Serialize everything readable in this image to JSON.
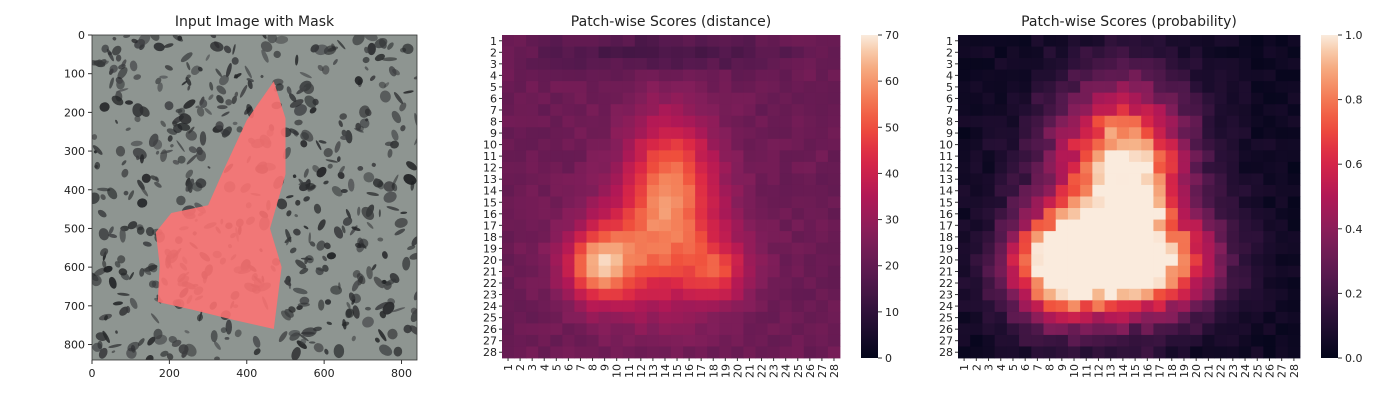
{
  "chart_data": [
    {
      "type": "heatmap",
      "title": "Input Image with Mask",
      "xticks": [
        0,
        200,
        400,
        600,
        800
      ],
      "yticks": [
        0,
        100,
        200,
        300,
        400,
        500,
        600,
        700,
        800
      ],
      "xlim": [
        0,
        840
      ],
      "ylim": [
        0,
        840
      ],
      "mask_color": "#ff5a5a",
      "mask_polygon": [
        [
          470,
          120
        ],
        [
          500,
          215
        ],
        [
          500,
          360
        ],
        [
          460,
          500
        ],
        [
          490,
          600
        ],
        [
          470,
          760
        ],
        [
          360,
          735
        ],
        [
          260,
          710
        ],
        [
          170,
          690
        ],
        [
          175,
          595
        ],
        [
          165,
          510
        ],
        [
          205,
          460
        ],
        [
          300,
          440
        ],
        [
          340,
          350
        ],
        [
          400,
          220
        ]
      ]
    },
    {
      "type": "heatmap",
      "title": "Patch-wise Scores (distance)",
      "labels": [
        "1",
        "2",
        "3",
        "4",
        "5",
        "6",
        "7",
        "8",
        "9",
        "10",
        "11",
        "12",
        "13",
        "14",
        "15",
        "16",
        "17",
        "18",
        "19",
        "20",
        "21",
        "22",
        "23",
        "24",
        "25",
        "26",
        "27",
        "28"
      ],
      "colorbar_ticks": [
        0,
        10,
        20,
        30,
        40,
        50,
        60,
        70
      ],
      "vmin": 0,
      "vmax": 70,
      "colormap": "rocket"
    },
    {
      "type": "heatmap",
      "title": "Patch-wise Scores (probability)",
      "labels": [
        "1",
        "2",
        "3",
        "4",
        "5",
        "6",
        "7",
        "8",
        "9",
        "10",
        "11",
        "12",
        "13",
        "14",
        "15",
        "16",
        "17",
        "18",
        "19",
        "20",
        "21",
        "22",
        "23",
        "24",
        "25",
        "26",
        "27",
        "28"
      ],
      "colorbar_ticks": [
        "0.0",
        "0.2",
        "0.4",
        "0.6",
        "0.8",
        "1.0"
      ],
      "vmin": 0,
      "vmax": 1,
      "colormap": "rocket"
    }
  ]
}
